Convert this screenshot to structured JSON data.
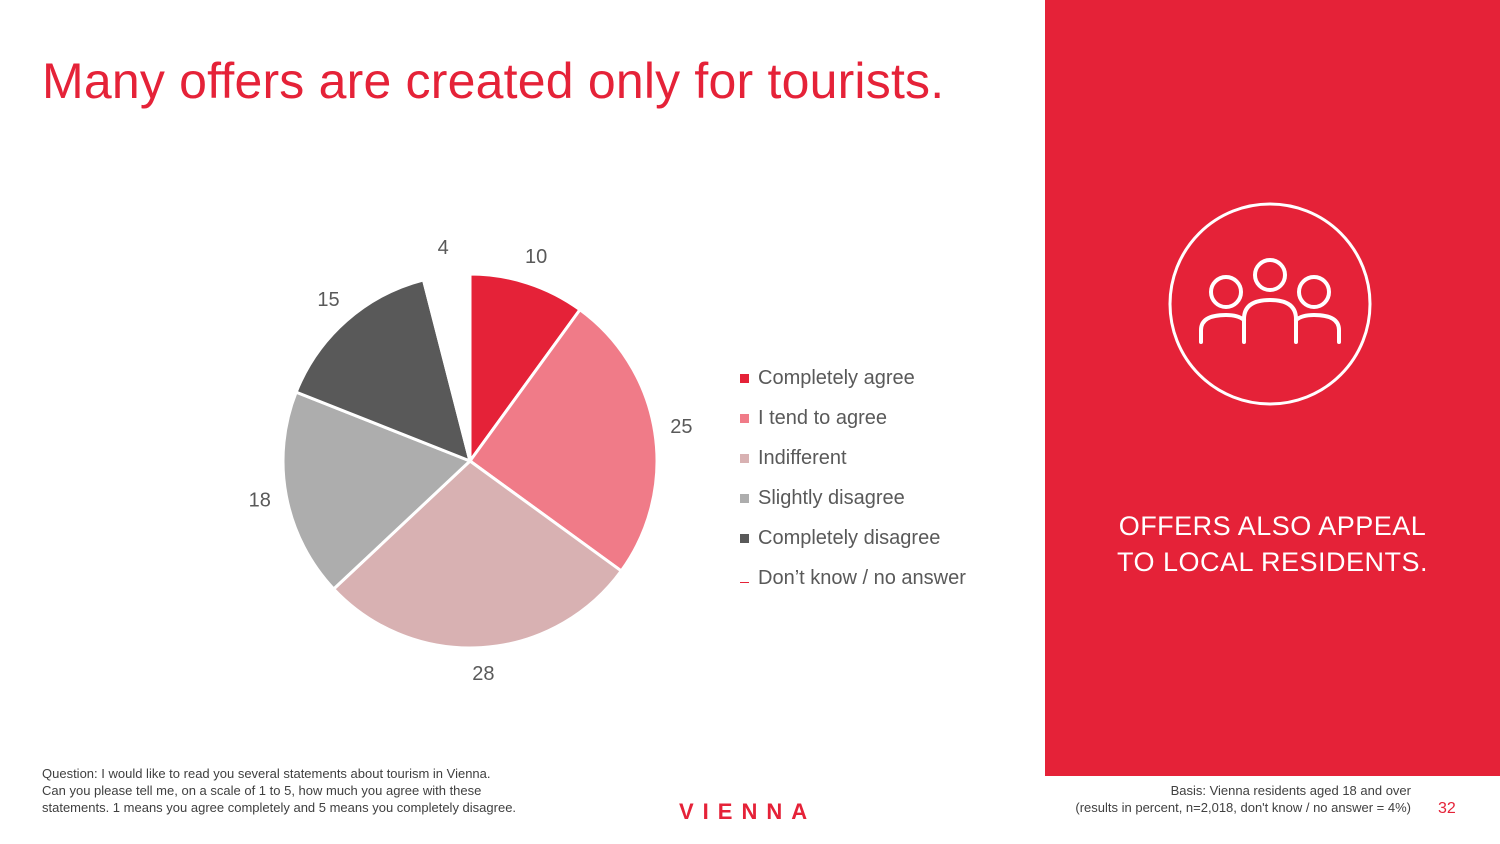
{
  "title": "Many offers are created only for tourists.",
  "side_panel": {
    "icon": "people-group-icon",
    "text_lines": [
      "OFFERS ALSO APPEAL",
      "TO LOCAL RESIDENTS."
    ]
  },
  "chart_data": {
    "type": "pie",
    "categories": [
      "Completely agree",
      "I tend to agree",
      "Indifferent",
      "Slightly disagree",
      "Completely disagree",
      "Don’t know / no answer"
    ],
    "values": [
      10,
      25,
      28,
      18,
      15,
      4
    ],
    "colors": [
      "#e52238",
      "#f07b88",
      "#d8b1b2",
      "#adadad",
      "#595959",
      "#ffffff"
    ],
    "legend_position": "right"
  },
  "footnotes": {
    "question_lines": [
      "Question: I would like to read you several statements about tourism in Vienna.",
      "Can you please tell me, on a scale of 1 to 5, how much you agree with these",
      "statements. 1 means you agree completely and 5 means you completely disagree."
    ],
    "basis_lines": [
      "Basis: Vienna residents aged 18 and over",
      "(results in percent, n=2,018, don't know / no answer = 4%)"
    ]
  },
  "brand": "VIENNA",
  "page_number": "32",
  "colors": {
    "accent": "#e52238"
  }
}
